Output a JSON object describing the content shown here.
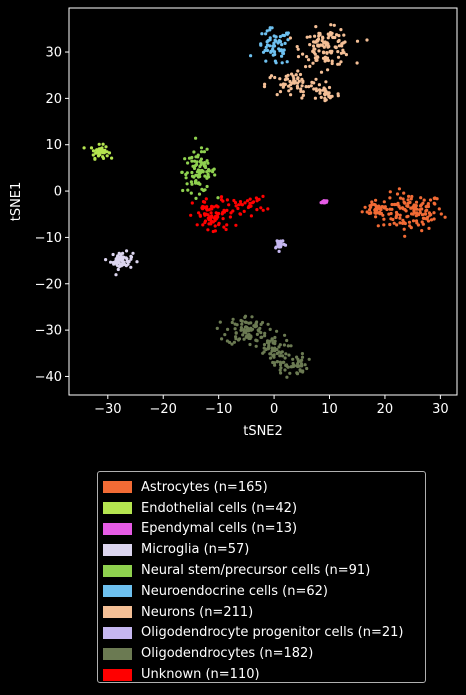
{
  "chart_data": {
    "type": "scatter",
    "title": "",
    "xlabel": "tSNE2",
    "ylabel": "tSNE1",
    "xlim": [
      -37,
      33
    ],
    "ylim": [
      -44,
      39.5
    ],
    "xticks": [
      -30,
      -20,
      -10,
      0,
      10,
      20,
      30
    ],
    "yticks": [
      -40,
      -30,
      -20,
      -10,
      0,
      10,
      20,
      30
    ],
    "xtick_labels": [
      "−30",
      "−20",
      "−10",
      "0",
      "10",
      "20",
      "30"
    ],
    "ytick_labels": [
      "−40",
      "−30",
      "−20",
      "−10",
      "0",
      "10",
      "20",
      "30"
    ],
    "grid": false,
    "legend_position": "below",
    "background": "#000000",
    "series": [
      {
        "name": "Astrocytes (n=165)",
        "color": "#f26b35",
        "count": 165,
        "clusters": [
          {
            "cx": 24.5,
            "cy": -4.5,
            "sx": 3.0,
            "sy": 2.0,
            "n": 135
          },
          {
            "cx": 18.5,
            "cy": -3.8,
            "sx": 1.2,
            "sy": 0.8,
            "n": 30
          }
        ]
      },
      {
        "name": "Endothelial cells (n=42)",
        "color": "#b5e550",
        "count": 42,
        "clusters": [
          {
            "cx": -31.5,
            "cy": 8.5,
            "sx": 0.8,
            "sy": 0.7,
            "n": 42
          }
        ]
      },
      {
        "name": "Ependymal cells (n=13)",
        "color": "#e65ce6",
        "count": 13,
        "clusters": [
          {
            "cx": 9.0,
            "cy": -2.3,
            "sx": 0.25,
            "sy": 0.25,
            "n": 13
          }
        ]
      },
      {
        "name": "Microglia (n=57)",
        "color": "#dcd5ef",
        "count": 57,
        "clusters": [
          {
            "cx": -27.5,
            "cy": -15.0,
            "sx": 1.0,
            "sy": 0.9,
            "n": 57
          }
        ]
      },
      {
        "name": "Neural stem/precursor cells (n=91)",
        "color": "#8fd14f",
        "count": 91,
        "clusters": [
          {
            "cx": -13.5,
            "cy": 4.2,
            "sx": 1.5,
            "sy": 2.2,
            "n": 91
          }
        ]
      },
      {
        "name": "Neuroendocrine cells (n=62)",
        "color": "#6ec1f0",
        "count": 62,
        "clusters": [
          {
            "cx": 0.0,
            "cy": 31.0,
            "sx": 1.6,
            "sy": 2.0,
            "n": 62
          }
        ]
      },
      {
        "name": "Neurons (n=211)",
        "color": "#f4bf96",
        "count": 211,
        "clusters": [
          {
            "cx": 9.5,
            "cy": 31.0,
            "sx": 2.3,
            "sy": 2.0,
            "n": 120
          },
          {
            "cx": 3.5,
            "cy": 23.0,
            "sx": 2.5,
            "sy": 1.3,
            "n": 60
          },
          {
            "cx": 9.5,
            "cy": 21.0,
            "sx": 1.2,
            "sy": 1.0,
            "n": 31
          }
        ]
      },
      {
        "name": "Oligodendrocyte progenitor cells (n=21)",
        "color": "#c5b7f0",
        "count": 21,
        "clusters": [
          {
            "cx": 1.0,
            "cy": -11.3,
            "sx": 0.5,
            "sy": 0.6,
            "n": 21
          }
        ]
      },
      {
        "name": "Oligodendrocytes (n=182)",
        "color": "#6b7a52",
        "count": 182,
        "clusters": [
          {
            "cx": -5.0,
            "cy": -30.0,
            "sx": 1.8,
            "sy": 1.6,
            "n": 80
          },
          {
            "cx": -0.5,
            "cy": -34.0,
            "sx": 1.5,
            "sy": 1.6,
            "n": 52
          },
          {
            "cx": 3.0,
            "cy": -37.5,
            "sx": 1.5,
            "sy": 1.2,
            "n": 50
          }
        ]
      },
      {
        "name": "Unknown (n=110)",
        "color": "#ff0000",
        "count": 110,
        "clusters": [
          {
            "cx": -11.0,
            "cy": -5.5,
            "sx": 1.8,
            "sy": 2.0,
            "n": 75
          },
          {
            "cx": -5.0,
            "cy": -3.0,
            "sx": 1.8,
            "sy": 0.9,
            "n": 35
          }
        ]
      }
    ]
  },
  "legend": {
    "items": [
      {
        "label": "Astrocytes (n=165)",
        "color": "#f26b35"
      },
      {
        "label": "Endothelial cells (n=42)",
        "color": "#b5e550"
      },
      {
        "label": "Ependymal cells (n=13)",
        "color": "#e65ce6"
      },
      {
        "label": "Microglia (n=57)",
        "color": "#dcd5ef"
      },
      {
        "label": "Neural stem/precursor cells (n=91)",
        "color": "#8fd14f"
      },
      {
        "label": "Neuroendocrine cells (n=62)",
        "color": "#6ec1f0"
      },
      {
        "label": "Neurons (n=211)",
        "color": "#f4bf96"
      },
      {
        "label": "Oligodendrocyte progenitor cells (n=21)",
        "color": "#c5b7f0"
      },
      {
        "label": "Oligodendrocytes (n=182)",
        "color": "#6b7a52"
      },
      {
        "label": "Unknown (n=110)",
        "color": "#ff0000"
      }
    ]
  }
}
